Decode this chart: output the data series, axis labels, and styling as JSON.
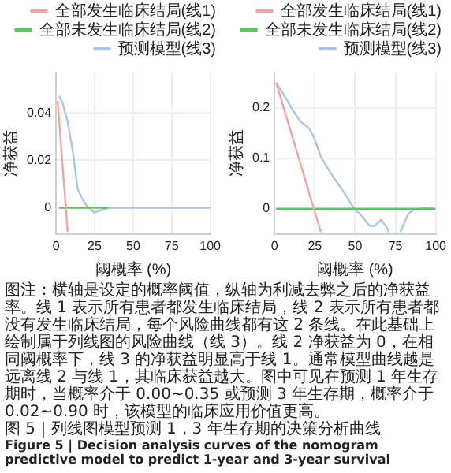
{
  "chart_data": [
    {
      "type": "line",
      "xlabel": "阈概率 (%)",
      "ylabel": "净获益",
      "xlim": [
        0,
        100
      ],
      "xticks": [
        0,
        25,
        50,
        75,
        100
      ],
      "ylim": [
        -0.011,
        0.057
      ],
      "yticks": [
        0,
        0.02,
        0.04
      ],
      "grid": true,
      "legend": "top",
      "marker": "none",
      "line_style": "solid",
      "annotations": [
        "图注：横轴是设定的概率阈值，纵轴为利减去弊之后的净获益率。线 1 表示所有患者都发生临床结局，线 2 表示所有患者都没有发生临床结局，每个风险曲线都有这 2 条线。在此基础上绘制属于列线图的风险曲线（线 3）。线 2 净获益为 0，在相同阈概率下，线 3 的净获益明显高于线 1。通常模型曲线越是远离线 2 与线 1，其临床获益越大。图中可见在预测 1 年生存期时，当概率介于 0.00~0.35 或预测 3 年生存期，概率介于 0.02~0.90 时，该模型的临床应用价值更高。",
        "图 5 | 列线图模型预测 1，3 年生存期的决策分析曲线",
        "Figure 5 | Decision analysis curves of the nomogram predictive model to predict 1-year and 3-year survival"
      ],
      "series": [
        {
          "name": "全部发生临床结局(线1)",
          "color": "#f2a3a3",
          "x": [
            1,
            7.5
          ],
          "values": [
            0.045,
            -0.01
          ]
        },
        {
          "name": "全部未发生临床结局(线2)",
          "color": "#5cc75c",
          "x": [
            2,
            34
          ],
          "values": [
            0,
            0
          ]
        },
        {
          "name": "预测模型(线3)",
          "color": "#a8c4ec",
          "x": [
            2,
            4.3,
            7.6,
            11,
            14,
            17.6,
            21,
            25,
            29,
            34,
            100
          ],
          "values": [
            0.047,
            0.044,
            0.036,
            0.023,
            0.008,
            0.003,
            0,
            -0.002,
            -0.001,
            0,
            0
          ]
        }
      ]
    },
    {
      "type": "line",
      "xlabel": "阈概率 (%)",
      "ylabel": "净获益",
      "xlim": [
        0,
        100
      ],
      "xticks": [
        0,
        25,
        50,
        75,
        100
      ],
      "ylim": [
        -0.05,
        0.27
      ],
      "yticks": [
        0,
        0.1,
        0.2
      ],
      "grid": true,
      "legend": "top",
      "marker": "none",
      "line_style": "solid",
      "series": [
        {
          "name": "全部发生临床结局(线1)",
          "color": "#f2a3a3",
          "x": [
            1,
            28.7
          ],
          "values": [
            0.25,
            -0.046
          ]
        },
        {
          "name": "全部未发生临床结局(线2)",
          "color": "#5cc75c",
          "x": [
            1,
            100
          ],
          "values": [
            0,
            0
          ]
        },
        {
          "name": "预测模型(线3)",
          "color": "#a8c4ec",
          "x": [
            1,
            6,
            11,
            16,
            21,
            24,
            29,
            36,
            43,
            49,
            54,
            59,
            62,
            66,
            69,
            71,
            75,
            78,
            83,
            86,
            93,
            98,
            100
          ],
          "values": [
            0.25,
            0.225,
            0.197,
            0.173,
            0.161,
            0.145,
            0.101,
            0.065,
            0.033,
            0.002,
            -0.014,
            -0.034,
            -0.034,
            -0.022,
            -0.034,
            -0.046,
            null,
            -0.046,
            -0.01,
            -0.002,
            0.002,
            0,
            0
          ]
        }
      ]
    }
  ]
}
